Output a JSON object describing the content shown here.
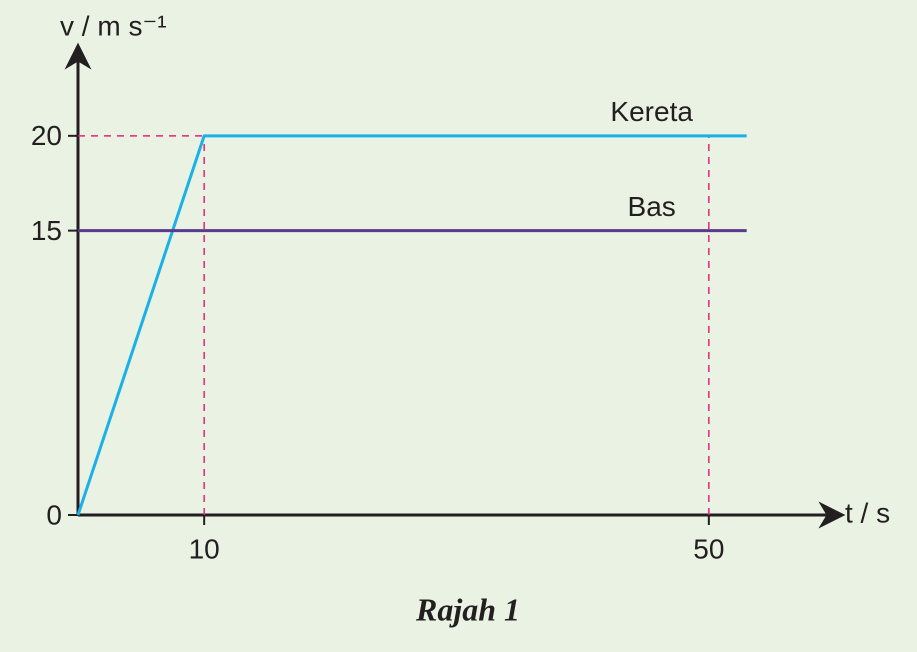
{
  "chart_data": {
    "type": "line",
    "title": "Rajah 1",
    "xlabel": "t / s",
    "ylabel": "v / m s⁻¹",
    "xlim": [
      0,
      60
    ],
    "ylim": [
      0,
      24
    ],
    "xticks": [
      10,
      50
    ],
    "yticks": [
      0,
      15,
      20
    ],
    "series": [
      {
        "name": "Kereta",
        "color": "#1ab0e8",
        "x": [
          0,
          10,
          53
        ],
        "values": [
          0,
          20,
          20
        ]
      },
      {
        "name": "Bas",
        "color": "#5b3a8e",
        "x": [
          0,
          53
        ],
        "values": [
          15,
          15
        ]
      }
    ],
    "guide_color": "#e6237a"
  }
}
